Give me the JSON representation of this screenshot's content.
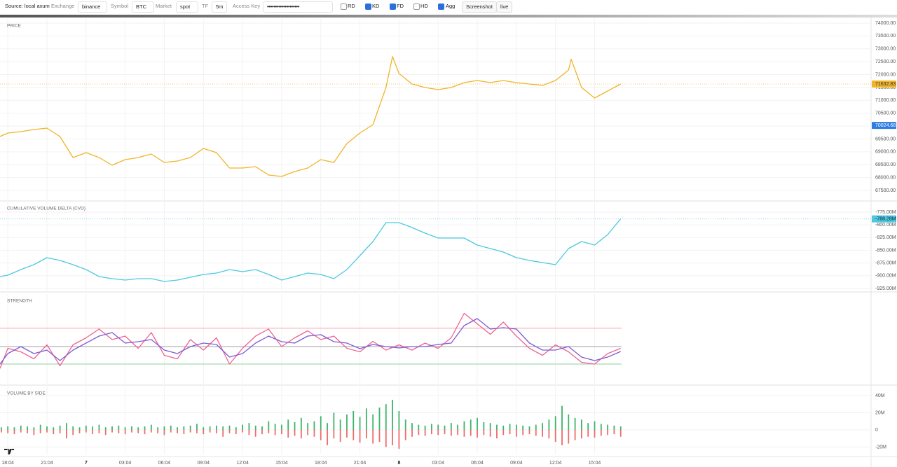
{
  "toolbar": {
    "source": "Source: local axum",
    "fields": [
      {
        "label": "Exchange",
        "value": "binance"
      },
      {
        "label": "Symbol",
        "value": "BTC"
      },
      {
        "label": "Market",
        "value": "spot"
      },
      {
        "label": "TF",
        "value": "5m"
      },
      {
        "label": "Access Key",
        "value": "••••••••••••••••••••"
      }
    ],
    "toggles": [
      {
        "label": "RD",
        "checked": false
      },
      {
        "label": "KD",
        "checked": true
      },
      {
        "label": "FD",
        "checked": true
      },
      {
        "label": "HD",
        "checked": false
      },
      {
        "label": "Agg",
        "checked": true
      }
    ],
    "buttons": [
      "Screenshot",
      "live"
    ]
  },
  "chart_data": [
    {
      "type": "line",
      "title": "PRICE",
      "color": "#f0b429",
      "x": [
        -0.6,
        0,
        1,
        2,
        3,
        4,
        5,
        6,
        7,
        8,
        9,
        10,
        11,
        12,
        13,
        14,
        15,
        16,
        17,
        18,
        19,
        20,
        21,
        22,
        23,
        24,
        25,
        26,
        27,
        28,
        29,
        29.5,
        30,
        31,
        32,
        33,
        34,
        35,
        36,
        37,
        38,
        39,
        40,
        41,
        42,
        43,
        43.2,
        44,
        45,
        46,
        47
      ],
      "values": [
        69594,
        69730,
        69784,
        69866,
        69920,
        69594,
        68778,
        68968,
        68778,
        68478,
        68696,
        68778,
        68914,
        68587,
        68641,
        68778,
        69131,
        68968,
        68370,
        68370,
        68424,
        68098,
        68043,
        68234,
        68370,
        68696,
        68587,
        69322,
        69730,
        70056,
        71498,
        72700,
        72042,
        71634,
        71498,
        71416,
        71498,
        71688,
        71770,
        71688,
        71770,
        71688,
        71634,
        71579,
        71770,
        72178,
        72600,
        71498,
        71090,
        71362,
        71632.83
      ],
      "ylim": [
        67146,
        74163
      ],
      "yticks": [
        {
          "value": 67500,
          "label": "67500.00"
        },
        {
          "value": 68000,
          "label": "68000.00"
        },
        {
          "value": 68500,
          "label": "68500.00"
        },
        {
          "value": 69000,
          "label": "69000.00"
        },
        {
          "value": 69500,
          "label": "69500.00"
        },
        {
          "value": 70000,
          "label": "70000.00"
        },
        {
          "value": 70500,
          "label": "70500.00"
        },
        {
          "value": 71000,
          "label": "71000.00"
        },
        {
          "value": 71500,
          "label": "71500.00"
        },
        {
          "value": 72000,
          "label": "72000.00"
        },
        {
          "value": 72500,
          "label": "72500.00"
        },
        {
          "value": 73000,
          "label": "73000.00"
        },
        {
          "value": 73500,
          "label": "73500.00"
        },
        {
          "value": 74000,
          "label": "74000.00"
        }
      ],
      "last_value": 71632.83,
      "crosshair_value": 70024.68
    },
    {
      "type": "line",
      "title": "CUMULATIVE VOLUME DELTA (CVD)",
      "color": "#4cc9e0",
      "x": [
        -0.6,
        0,
        1,
        2,
        3,
        4,
        5,
        6,
        7,
        8,
        9,
        10,
        11,
        12,
        13,
        14,
        15,
        16,
        17,
        18,
        19,
        20,
        21,
        22,
        23,
        24,
        25,
        26,
        27,
        28,
        29,
        30,
        31,
        32,
        33,
        34,
        35,
        36,
        37,
        38,
        39,
        40,
        41,
        42,
        43,
        44,
        45,
        46,
        47
      ],
      "values": [
        -901.6,
        -898.8,
        -887.8,
        -878.2,
        -864.4,
        -870.0,
        -878.2,
        -887.8,
        -901.6,
        -905.7,
        -908.5,
        -905.7,
        -905.7,
        -911.2,
        -908.5,
        -903.0,
        -897.5,
        -894.7,
        -887.8,
        -892.0,
        -887.8,
        -897.5,
        -908.5,
        -901.6,
        -894.7,
        -897.5,
        -905.7,
        -887.8,
        -860.3,
        -832.8,
        -795.6,
        -795.6,
        -805.3,
        -816.3,
        -825.9,
        -825.9,
        -825.9,
        -839.7,
        -846.6,
        -853.4,
        -864.4,
        -870.0,
        -874.1,
        -878.2,
        -846.6,
        -832.8,
        -839.7,
        -819.0,
        -788.28
      ],
      "ylim": [
        -929.1,
        -754.4
      ],
      "yticks": [
        {
          "value": -775,
          "label": "-775.00M"
        },
        {
          "value": -800,
          "label": "-800.00M"
        },
        {
          "value": -825,
          "label": "-825.00M"
        },
        {
          "value": -850,
          "label": "-850.00M"
        },
        {
          "value": -875,
          "label": "-875.00M"
        },
        {
          "value": -900,
          "label": "-900.00M"
        },
        {
          "value": -925,
          "label": "-925.00M"
        }
      ],
      "last_value": {
        "value": -788.28,
        "label": "-788.28M"
      }
    },
    {
      "type": "line",
      "title": "STRENGTH",
      "x": [
        -0.6,
        0,
        1,
        2,
        3,
        4,
        5,
        6,
        7,
        8,
        9,
        10,
        11,
        12,
        13,
        14,
        15,
        16,
        17,
        18,
        19,
        20,
        21,
        22,
        23,
        24,
        25,
        26,
        27,
        28,
        29,
        30,
        31,
        32,
        33,
        34,
        35,
        36,
        37,
        38,
        39,
        40,
        41,
        42,
        43,
        44,
        45,
        46,
        47
      ],
      "series": [
        {
          "color": "#f06292",
          "values": [
            25,
            48,
            44,
            36,
            52,
            28,
            52,
            60,
            70,
            58,
            62,
            48,
            66,
            40,
            36,
            58,
            46,
            60,
            30,
            48,
            62,
            70,
            50,
            60,
            68,
            58,
            62,
            48,
            44,
            56,
            46,
            52,
            46,
            54,
            48,
            60,
            88,
            76,
            64,
            78,
            62,
            48,
            40,
            52,
            44,
            32,
            30,
            42,
            48
          ]
        },
        {
          "color": "#7b5cd6",
          "values": [
            30,
            42,
            50,
            42,
            46,
            34,
            46,
            54,
            62,
            66,
            54,
            55.6,
            58,
            46,
            42,
            50,
            54,
            52.4,
            38,
            42,
            54,
            62,
            55.6,
            54,
            62,
            63.6,
            55.6,
            54,
            47.6,
            52.4,
            50,
            48.4,
            50,
            50,
            52.4,
            54,
            74,
            82,
            70,
            71.6,
            70,
            54,
            46,
            46,
            50,
            38,
            34,
            38,
            44.4
          ]
        }
      ],
      "levels": [
        {
          "value": 71,
          "color": "#f4a0a8"
        },
        {
          "value": 50,
          "color": "#a0a0a0"
        },
        {
          "value": 30,
          "color": "#8fd19e"
        }
      ],
      "ylim": [
        7.6,
        110
      ]
    },
    {
      "type": "bar",
      "title": "VOLUME BY SIDE",
      "x": [
        -0.5,
        0,
        0.5,
        1,
        1.5,
        2,
        2.5,
        3,
        3.5,
        4,
        4.5,
        5,
        5.5,
        6,
        6.5,
        7,
        7.5,
        8,
        8.5,
        9,
        9.5,
        10,
        10.5,
        11,
        11.5,
        12,
        12.5,
        13,
        13.5,
        14,
        14.5,
        15,
        15.5,
        16,
        16.5,
        17,
        17.5,
        18,
        18.5,
        19,
        19.5,
        20,
        20.5,
        21,
        21.5,
        22,
        22.5,
        23,
        23.5,
        24,
        24.5,
        25,
        25.5,
        26,
        26.5,
        27,
        27.5,
        28,
        28.5,
        29,
        29.5,
        30,
        30.5,
        31,
        31.5,
        32,
        32.5,
        33,
        33.5,
        34,
        34.5,
        35,
        35.5,
        36,
        36.5,
        37,
        37.5,
        38,
        38.5,
        39,
        39.5,
        40,
        40.5,
        41,
        41.5,
        42,
        42.5,
        43,
        43.5,
        44,
        44.5,
        45,
        45.5,
        46,
        46.5,
        47
      ],
      "series": [
        {
          "color": "#3fb36b",
          "values": [
            3,
            4,
            3,
            5,
            4,
            3,
            6,
            4,
            3,
            5,
            8,
            4,
            3,
            5,
            4,
            6,
            3,
            4,
            5,
            3,
            4,
            3,
            4,
            6,
            3,
            4,
            5,
            3,
            4,
            5,
            7,
            3,
            4,
            5,
            4,
            5,
            3,
            6,
            8,
            5,
            4,
            10,
            7,
            6,
            12,
            9,
            14,
            8,
            10,
            16,
            8,
            20,
            12,
            18,
            22,
            15,
            25,
            18,
            26,
            30,
            35,
            22,
            12,
            8,
            6,
            5,
            7,
            6,
            5,
            8,
            6,
            10,
            12,
            14,
            9,
            8,
            6,
            5,
            7,
            6,
            5,
            4,
            6,
            8,
            12,
            16,
            28,
            18,
            14,
            12,
            8,
            10,
            7,
            6,
            5,
            4
          ]
        },
        {
          "color": "#ef6b6b",
          "values": [
            -3,
            -4,
            -5,
            -3,
            -4,
            -6,
            -4,
            -3,
            -5,
            -4,
            -10,
            -6,
            -4,
            -3,
            -5,
            -4,
            -6,
            -3,
            -4,
            -5,
            -3,
            -4,
            -5,
            -3,
            -4,
            -6,
            -3,
            -4,
            -5,
            -3,
            -4,
            -5,
            -3,
            -4,
            -8,
            -4,
            -5,
            -3,
            -6,
            -8,
            -5,
            -4,
            -6,
            -5,
            -9,
            -7,
            -10,
            -6,
            -8,
            -12,
            -18,
            -10,
            -14,
            -9,
            -12,
            -15,
            -10,
            -16,
            -14,
            -20,
            -18,
            -22,
            -12,
            -8,
            -6,
            -7,
            -5,
            -6,
            -5,
            -7,
            -6,
            -8,
            -7,
            -9,
            -6,
            -8,
            -10,
            -6,
            -5,
            -8,
            -6,
            -5,
            -7,
            -8,
            -10,
            -14,
            -18,
            -16,
            -12,
            -10,
            -8,
            -9,
            -7,
            -6,
            -5,
            -8
          ]
        }
      ],
      "ylim": [
        -27.8,
        50.6
      ],
      "yticks": [
        {
          "value": 40,
          "label": "40M"
        },
        {
          "value": 20,
          "label": "20M"
        },
        0,
        {
          "value": -20,
          "label": "-20M"
        }
      ],
      "xlim": [
        -0.6,
        66.2
      ],
      "xticks": [
        {
          "value": 0,
          "label": "18:04"
        },
        {
          "value": 3,
          "label": "21:04"
        },
        {
          "value": 6,
          "label": "7"
        },
        {
          "value": 9,
          "label": "03:04"
        },
        {
          "value": 12,
          "label": "06:04"
        },
        {
          "value": 15,
          "label": "09:04"
        },
        {
          "value": 18,
          "label": "12:04"
        },
        {
          "value": 21,
          "label": "15:04"
        },
        {
          "value": 24,
          "label": "18:04"
        },
        {
          "value": 27,
          "label": "21:04"
        },
        {
          "value": 30,
          "label": "8"
        },
        {
          "value": 33,
          "label": "03:04"
        },
        {
          "value": 36,
          "label": "06:04"
        },
        {
          "value": 39,
          "label": "09:04"
        },
        {
          "value": 42,
          "label": "12:04"
        },
        {
          "value": 45,
          "label": "15:04"
        }
      ]
    }
  ]
}
